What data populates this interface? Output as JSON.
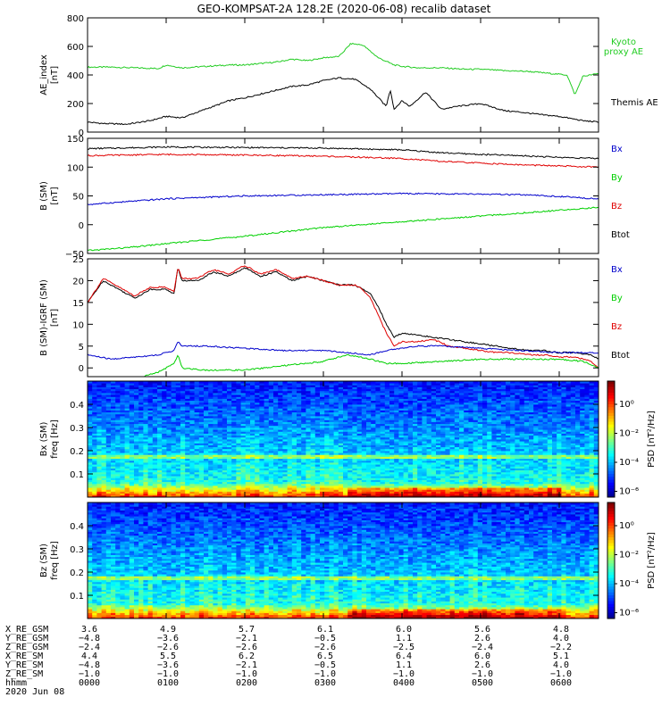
{
  "title": "GEO-KOMPSAT-2A 128.2E (2020-06-08) recalib dataset",
  "colors": {
    "black": "#000000",
    "red": "#e00000",
    "green": "#00d000",
    "blue": "#0000cc",
    "kyoto": "#22cc22"
  },
  "time_axis": {
    "start": "0000",
    "end": "0630",
    "ticks": [
      "0000",
      "0100",
      "0200",
      "0300",
      "0400",
      "0500",
      "0600"
    ],
    "day_label": "2020 Jun 08",
    "hhmm_label": "hhmm"
  },
  "chart_data": [
    {
      "type": "line",
      "id": "ae",
      "ylabel": "AE_index",
      "yunit": "[nT]",
      "ylim": [
        0,
        800
      ],
      "yticks": [
        0,
        200,
        400,
        600,
        800
      ],
      "legend": [
        {
          "text": "Kyoto",
          "color": "kyoto"
        },
        {
          "text": "proxy AE",
          "color": "kyoto"
        },
        {
          "text": "Themis AE",
          "color": "black"
        }
      ],
      "series": [
        {
          "name": "Kyoto proxy AE",
          "color": "kyoto",
          "x": [
            0,
            0.3,
            0.6,
            0.9,
            1.0,
            1.2,
            1.5,
            1.8,
            2.0,
            2.2,
            2.4,
            2.6,
            2.8,
            3.0,
            3.2,
            3.35,
            3.5,
            3.7,
            3.9,
            4.0,
            4.2,
            4.5,
            4.8,
            5.0,
            5.3,
            5.6,
            5.9,
            6.1,
            6.2,
            6.3,
            6.5
          ],
          "y": [
            455,
            455,
            450,
            445,
            470,
            450,
            460,
            470,
            470,
            480,
            490,
            510,
            500,
            520,
            530,
            620,
            610,
            520,
            470,
            460,
            450,
            450,
            440,
            440,
            430,
            425,
            410,
            400,
            260,
            390,
            410
          ]
        },
        {
          "name": "Themis AE",
          "color": "black",
          "x": [
            0,
            0.2,
            0.5,
            0.8,
            1.0,
            1.2,
            1.5,
            1.8,
            2.0,
            2.3,
            2.6,
            2.8,
            3.0,
            3.2,
            3.4,
            3.6,
            3.8,
            3.85,
            3.9,
            4.0,
            4.1,
            4.3,
            4.5,
            4.7,
            5.0,
            5.3,
            5.5,
            5.8,
            6.0,
            6.3,
            6.5
          ],
          "y": [
            70,
            60,
            55,
            80,
            110,
            100,
            160,
            220,
            240,
            280,
            320,
            330,
            360,
            380,
            370,
            300,
            180,
            300,
            160,
            220,
            180,
            280,
            160,
            180,
            200,
            150,
            140,
            120,
            110,
            80,
            70
          ]
        }
      ]
    },
    {
      "type": "line",
      "id": "bsm",
      "ylabel": "B (SM)",
      "yunit": "[nT]",
      "ylim": [
        -50,
        150
      ],
      "yticks": [
        -50,
        0,
        50,
        100,
        150
      ],
      "legend": [
        {
          "text": "Bx",
          "color": "blue"
        },
        {
          "text": "By",
          "color": "green"
        },
        {
          "text": "Bz",
          "color": "red"
        },
        {
          "text": "Btot",
          "color": "black"
        }
      ],
      "series": [
        {
          "name": "Btot",
          "color": "black",
          "x": [
            0,
            1,
            2,
            3,
            4,
            4.5,
            5,
            5.5,
            6,
            6.5
          ],
          "y": [
            132,
            135,
            134,
            133,
            130,
            125,
            122,
            120,
            117,
            115
          ]
        },
        {
          "name": "Bz",
          "color": "red",
          "x": [
            0,
            1,
            2,
            3,
            4,
            4.5,
            5,
            5.5,
            6,
            6.5
          ],
          "y": [
            120,
            122,
            121,
            119,
            115,
            110,
            107,
            104,
            102,
            100
          ]
        },
        {
          "name": "Bx",
          "color": "blue",
          "x": [
            0,
            1,
            2,
            3,
            4,
            5,
            5.5,
            6,
            6.5
          ],
          "y": [
            35,
            45,
            50,
            52,
            54,
            53,
            52,
            49,
            45
          ]
        },
        {
          "name": "By",
          "color": "green",
          "x": [
            0,
            0.5,
            1,
            2,
            3,
            4,
            5,
            6,
            6.5
          ],
          "y": [
            -45,
            -40,
            -33,
            -20,
            -5,
            5,
            15,
            25,
            30
          ]
        }
      ]
    },
    {
      "type": "line",
      "id": "bdiff",
      "ylabel": "B (SM)-IGRF (SM)",
      "yunit": "[nT]",
      "ylim": [
        -2,
        25
      ],
      "yticks": [
        0,
        5,
        10,
        15,
        20,
        25
      ],
      "legend": [
        {
          "text": "Bx",
          "color": "blue"
        },
        {
          "text": "By",
          "color": "green"
        },
        {
          "text": "Bz",
          "color": "red"
        },
        {
          "text": "Btot",
          "color": "black"
        }
      ],
      "series": [
        {
          "name": "Btot",
          "color": "black",
          "x": [
            0,
            0.2,
            0.4,
            0.6,
            0.8,
            1.0,
            1.1,
            1.15,
            1.2,
            1.4,
            1.6,
            1.8,
            2.0,
            2.2,
            2.4,
            2.6,
            2.8,
            3.0,
            3.2,
            3.4,
            3.5,
            3.6,
            3.7,
            3.8,
            3.9,
            4.0,
            4.2,
            4.4,
            4.6,
            4.8,
            5.0,
            5.2,
            5.4,
            5.6,
            5.8,
            6.0,
            6.2,
            6.4,
            6.5
          ],
          "y": [
            15,
            20,
            18,
            16,
            18,
            18,
            17,
            23,
            20,
            20,
            22,
            21,
            23,
            21,
            22,
            20,
            21,
            20,
            19,
            19,
            18,
            17,
            14,
            10,
            7,
            8,
            7.5,
            7,
            6.5,
            6,
            5.5,
            5,
            4.5,
            4,
            4,
            3.5,
            3.5,
            3,
            2
          ]
        },
        {
          "name": "Bz",
          "color": "red",
          "x": [
            0,
            0.2,
            0.4,
            0.6,
            0.8,
            1.0,
            1.1,
            1.15,
            1.2,
            1.4,
            1.6,
            1.8,
            2.0,
            2.2,
            2.4,
            2.6,
            2.8,
            3.0,
            3.2,
            3.4,
            3.5,
            3.6,
            3.7,
            3.8,
            3.9,
            4.0,
            4.2,
            4.4,
            4.6,
            4.8,
            5.0,
            5.2,
            5.4,
            5.6,
            5.8,
            6.0,
            6.2,
            6.4,
            6.5
          ],
          "y": [
            15,
            20.5,
            18.5,
            16.5,
            18.5,
            18.5,
            17.5,
            23,
            20.5,
            20.5,
            22.5,
            21.5,
            23.5,
            21.5,
            22.5,
            20.5,
            21,
            20,
            19,
            19,
            18,
            16,
            12,
            8,
            5,
            6,
            6,
            6.5,
            5,
            4.5,
            4,
            3.5,
            3.5,
            3,
            3,
            2.5,
            2.5,
            1.5,
            0
          ]
        },
        {
          "name": "Bx",
          "color": "blue",
          "x": [
            0,
            0.3,
            0.6,
            0.9,
            1.0,
            1.1,
            1.15,
            1.2,
            1.5,
            2.0,
            2.5,
            3.0,
            3.3,
            3.6,
            3.8,
            4.0,
            4.2,
            4.5,
            5.0,
            5.5,
            6.0,
            6.5
          ],
          "y": [
            3,
            2,
            2.5,
            3,
            3.5,
            4,
            6,
            5,
            5,
            4.5,
            4,
            4,
            3.5,
            3,
            4,
            4.5,
            5,
            5,
            4.5,
            4,
            3.5,
            3.5
          ]
        },
        {
          "name": "By",
          "color": "green",
          "x": [
            0,
            0.3,
            0.6,
            0.9,
            1.0,
            1.1,
            1.15,
            1.2,
            1.5,
            2.0,
            2.5,
            3.0,
            3.3,
            3.6,
            3.8,
            4.0,
            4.5,
            5.0,
            5.5,
            6.0,
            6.3,
            6.5
          ],
          "y": [
            -3,
            -3,
            -2.5,
            -1,
            0,
            1,
            3,
            0,
            -0.5,
            -0.5,
            0.5,
            1.5,
            3,
            2,
            1,
            1,
            1.5,
            2,
            2,
            2,
            1.5,
            0
          ]
        }
      ]
    },
    {
      "type": "heatmap",
      "id": "spec-bx",
      "ylabel": "Bx (SM)",
      "yunit": "freq [Hz]",
      "ylim": [
        0,
        0.5
      ],
      "yticks": [
        0.1,
        0.2,
        0.3,
        0.4
      ],
      "colorbar": {
        "label": "PSD [nT²/Hz]",
        "ticks": [
          "10⁰",
          "10⁻²",
          "10⁻⁴",
          "10⁻⁶"
        ]
      }
    },
    {
      "type": "heatmap",
      "id": "spec-bz",
      "ylabel": "Bz (SM)",
      "yunit": "freq [Hz]",
      "ylim": [
        0,
        0.5
      ],
      "yticks": [
        0.1,
        0.2,
        0.3,
        0.4
      ],
      "colorbar": {
        "label": "PSD [nT²/Hz]",
        "ticks": [
          "10⁰",
          "10⁻²",
          "10⁻⁴",
          "10⁻⁶"
        ]
      }
    }
  ],
  "ephemeris": {
    "rows": [
      {
        "label": "X_RE_GSM",
        "values": [
          "3.6",
          "4.9",
          "5.7",
          "6.1",
          "6.0",
          "5.6",
          "4.8"
        ]
      },
      {
        "label": "Y_RE_GSM",
        "values": [
          "−4.8",
          "−3.6",
          "−2.1",
          "−0.5",
          "1.1",
          "2.6",
          "4.0"
        ]
      },
      {
        "label": "Z_RE_GSM",
        "values": [
          "−2.4",
          "−2.6",
          "−2.6",
          "−2.6",
          "−2.5",
          "−2.4",
          "−2.2"
        ]
      },
      {
        "label": "X_RE_SM",
        "values": [
          "4.4",
          "5.5",
          "6.2",
          "6.5",
          "6.4",
          "6.0",
          "5.1"
        ]
      },
      {
        "label": "Y_RE_SM",
        "values": [
          "−4.8",
          "−3.6",
          "−2.1",
          "−0.5",
          "1.1",
          "2.6",
          "4.0"
        ]
      },
      {
        "label": "Z_RE_SM",
        "values": [
          "−1.0",
          "−1.0",
          "−1.0",
          "−1.0",
          "−1.0",
          "−1.0",
          "−1.0"
        ]
      }
    ]
  }
}
